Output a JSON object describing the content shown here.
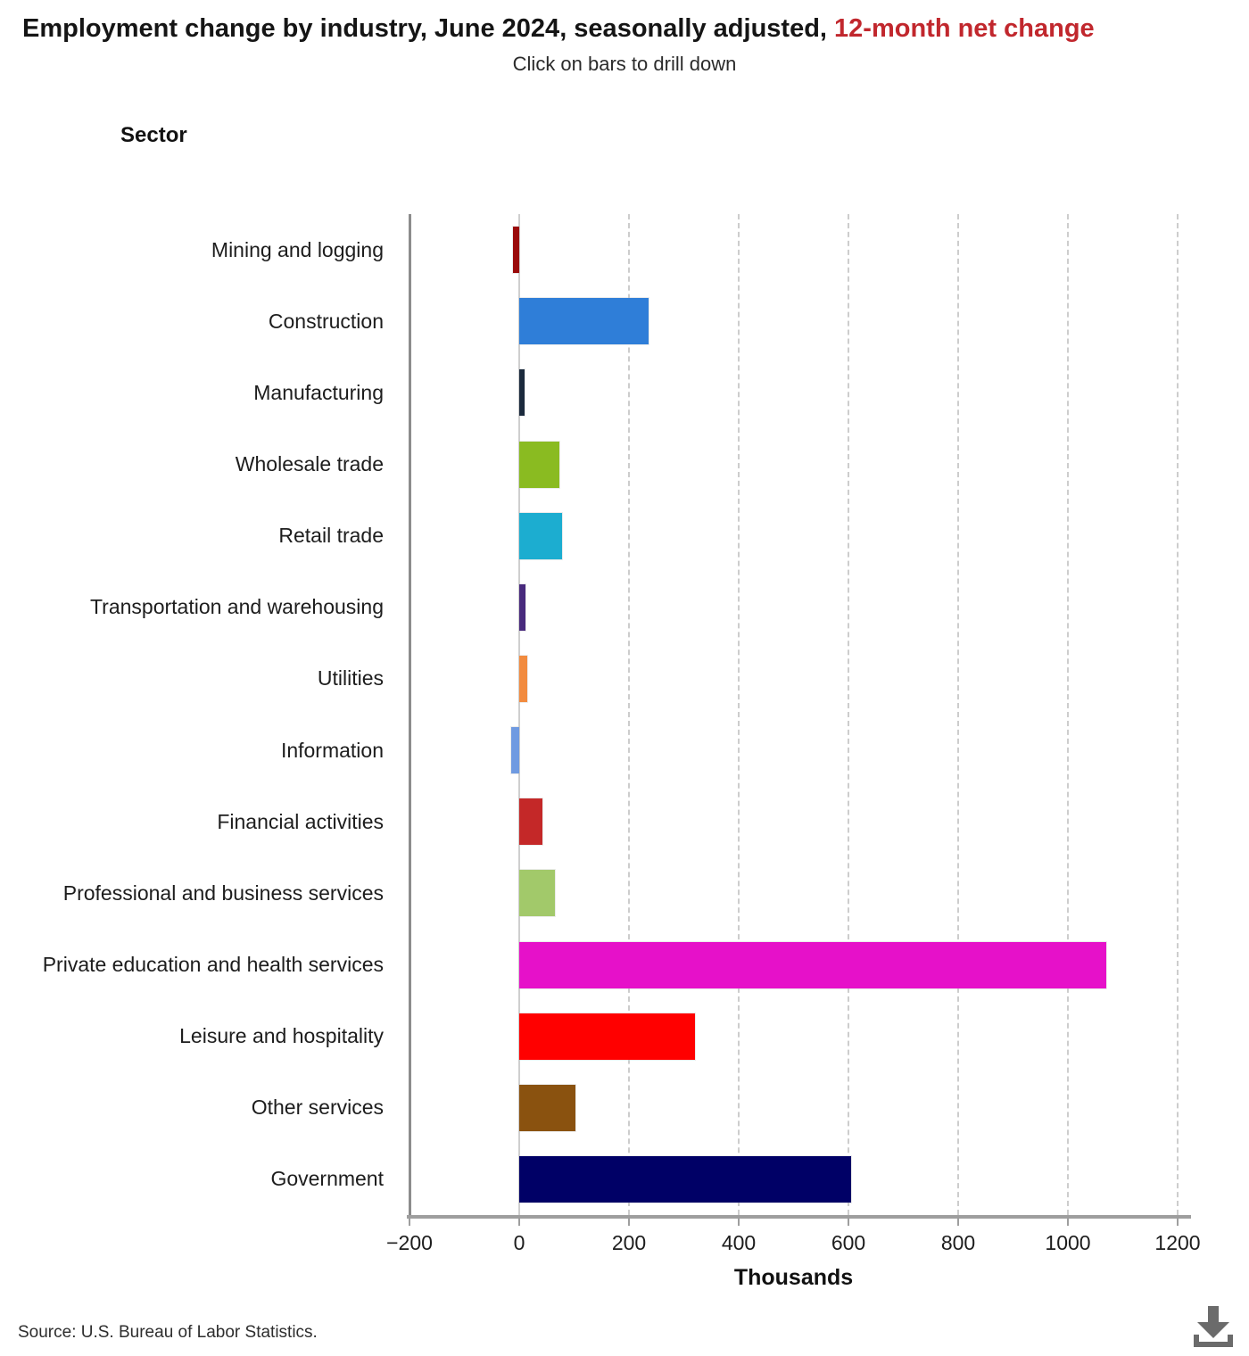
{
  "title": {
    "main": "Employment change by industry, June 2024, seasonally adjusted, ",
    "highlight": "12-month net change",
    "highlight_color": "#c1272d"
  },
  "subtitle": "Click on bars to drill down",
  "axis": {
    "y_title": "Sector",
    "x_title": "Thousands"
  },
  "footer": {
    "source": "Source: U.S. Bureau of Labor Statistics."
  },
  "icons": {
    "download": "download-icon"
  },
  "chart_data": {
    "type": "bar",
    "orientation": "horizontal",
    "title": "Employment change by industry, June 2024, seasonally adjusted, 12-month net change",
    "subtitle": "Click on bars to drill down",
    "xlabel": "Thousands",
    "ylabel": "Sector",
    "xlim": [
      -200,
      1200
    ],
    "xticks": [
      -200,
      0,
      200,
      400,
      600,
      800,
      1000,
      1200
    ],
    "grid": "vertical-dashed",
    "legend": "none",
    "categories": [
      "Mining and logging",
      "Construction",
      "Manufacturing",
      "Wholesale trade",
      "Retail trade",
      "Transportation and warehousing",
      "Utilities",
      "Information",
      "Financial activities",
      "Professional and business services",
      "Private education and health services",
      "Leisure and hospitality",
      "Other services",
      "Government"
    ],
    "values": [
      -12,
      235,
      10,
      73,
      78,
      12,
      14,
      -15,
      42,
      65,
      1070,
      320,
      102,
      605
    ],
    "colors": [
      "#9a0a0a",
      "#2f7ed8",
      "#1b2a3d",
      "#8abb21",
      "#1cadd0",
      "#482a7d",
      "#f28b3f",
      "#6f9ae1",
      "#c42828",
      "#a2c96a",
      "#e611c9",
      "#ff0000",
      "#8a520f",
      "#000066"
    ]
  }
}
